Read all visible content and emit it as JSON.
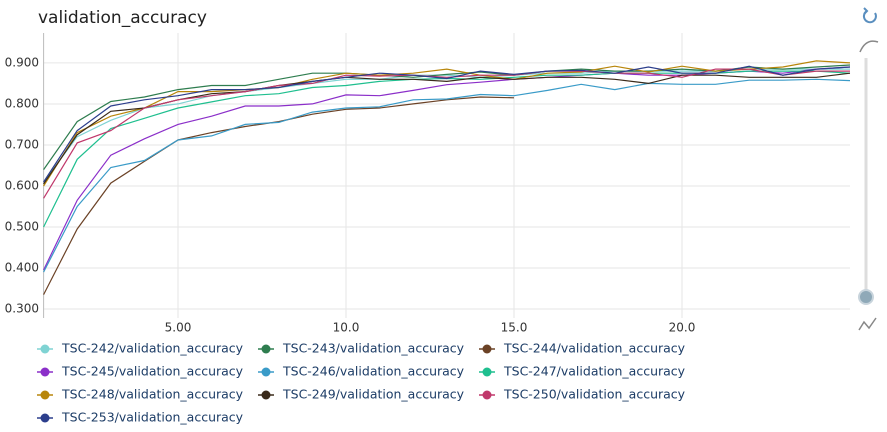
{
  "chart_data": {
    "type": "line",
    "title": "validation_accuracy",
    "x": [
      1,
      2,
      3,
      4,
      5,
      6,
      7,
      8,
      9,
      10,
      11,
      12,
      13,
      14,
      15,
      16,
      17,
      18,
      19,
      20,
      21,
      22,
      23,
      24,
      25
    ],
    "xlim": [
      1,
      25
    ],
    "ylim": [
      0.278,
      0.973
    ],
    "xticks": [
      {
        "value": 5,
        "label": "5.00"
      },
      {
        "value": 10,
        "label": "10.0"
      },
      {
        "value": 15,
        "label": "15.0"
      },
      {
        "value": 20,
        "label": "20.0"
      }
    ],
    "yticks": [
      {
        "value": 0.3,
        "label": "0.300"
      },
      {
        "value": 0.4,
        "label": "0.400"
      },
      {
        "value": 0.5,
        "label": "0.500"
      },
      {
        "value": 0.6,
        "label": "0.600"
      },
      {
        "value": 0.7,
        "label": "0.700"
      },
      {
        "value": 0.8,
        "label": "0.800"
      },
      {
        "value": 0.9,
        "label": "0.900"
      }
    ],
    "grid": true,
    "series": [
      {
        "name": "TSC-242/validation_accuracy",
        "color": "#7fd3d3",
        "values": [
          0.61,
          0.72,
          0.76,
          0.79,
          0.8,
          0.82,
          0.83,
          0.84,
          0.85,
          0.86,
          0.86,
          0.87,
          0.87,
          0.865,
          0.87,
          0.875,
          0.875,
          0.88,
          0.88,
          0.88,
          0.88,
          0.885,
          0.885,
          0.885,
          0.885
        ]
      },
      {
        "name": "TSC-243/validation_accuracy",
        "color": "#2e7d4f",
        "values": [
          0.64,
          0.757,
          0.806,
          0.817,
          0.835,
          0.845,
          0.845,
          0.86,
          0.875,
          0.875,
          0.87,
          0.865,
          0.872,
          0.878,
          0.87,
          0.88,
          0.885,
          0.88,
          0.88,
          0.885,
          0.88,
          0.89,
          0.885,
          0.89,
          0.895
        ]
      },
      {
        "name": "TSC-244/validation_accuracy",
        "color": "#6b4226",
        "values": [
          0.335,
          0.495,
          0.607,
          0.66,
          0.712,
          0.73,
          0.745,
          0.757,
          0.775,
          0.787,
          0.79,
          0.8,
          0.81,
          0.817,
          0.815,
          null,
          null,
          null,
          null,
          null,
          null,
          null,
          null,
          null,
          null
        ]
      },
      {
        "name": "TSC-245/validation_accuracy",
        "color": "#8b2fc9",
        "values": [
          0.395,
          0.565,
          0.675,
          0.715,
          0.75,
          0.77,
          0.795,
          0.795,
          0.8,
          0.822,
          0.82,
          0.833,
          0.847,
          0.853,
          0.86,
          0.865,
          0.87,
          0.875,
          0.87,
          0.87,
          0.875,
          0.88,
          0.875,
          0.885,
          0.89
        ]
      },
      {
        "name": "TSC-246/validation_accuracy",
        "color": "#3a9bc8",
        "values": [
          0.39,
          0.55,
          0.645,
          0.662,
          0.712,
          0.722,
          0.75,
          0.755,
          0.78,
          0.79,
          0.793,
          0.81,
          0.812,
          0.823,
          0.82,
          0.833,
          0.848,
          0.835,
          0.85,
          0.848,
          0.848,
          0.858,
          0.858,
          0.86,
          0.857
        ]
      },
      {
        "name": "TSC-247/validation_accuracy",
        "color": "#1fbf8f",
        "values": [
          0.5,
          0.665,
          0.74,
          0.765,
          0.79,
          0.805,
          0.82,
          0.825,
          0.84,
          0.845,
          0.855,
          0.86,
          0.862,
          0.86,
          0.865,
          0.87,
          0.87,
          0.875,
          0.875,
          0.875,
          0.875,
          0.88,
          0.88,
          0.88,
          0.875
        ]
      },
      {
        "name": "TSC-248/validation_accuracy",
        "color": "#b8860b",
        "values": [
          0.6,
          0.73,
          0.77,
          0.79,
          0.83,
          0.83,
          0.835,
          0.84,
          0.86,
          0.875,
          0.87,
          0.875,
          0.885,
          0.87,
          0.86,
          0.875,
          0.878,
          0.892,
          0.878,
          0.892,
          0.88,
          0.885,
          0.89,
          0.905,
          0.9
        ]
      },
      {
        "name": "TSC-249/validation_accuracy",
        "color": "#3a2a1a",
        "values": [
          0.605,
          0.725,
          0.782,
          0.79,
          0.81,
          0.825,
          0.83,
          0.845,
          0.855,
          0.865,
          0.86,
          0.86,
          0.855,
          0.865,
          0.86,
          0.865,
          0.865,
          0.86,
          0.85,
          0.87,
          0.87,
          0.865,
          0.865,
          0.865,
          0.875
        ]
      },
      {
        "name": "TSC-250/validation_accuracy",
        "color": "#c0386b",
        "values": [
          0.57,
          0.705,
          0.735,
          0.79,
          0.81,
          0.82,
          0.83,
          0.845,
          0.85,
          0.87,
          0.868,
          0.87,
          0.865,
          0.87,
          0.87,
          0.88,
          0.88,
          0.875,
          0.875,
          0.865,
          0.885,
          0.885,
          0.87,
          0.88,
          0.88
        ]
      },
      {
        "name": "TSC-253/validation_accuracy",
        "color": "#2c3e8c",
        "values": [
          0.61,
          0.735,
          0.795,
          0.81,
          0.82,
          0.835,
          0.835,
          0.84,
          0.855,
          0.865,
          0.875,
          0.87,
          0.862,
          0.88,
          0.872,
          0.88,
          0.882,
          0.875,
          0.89,
          0.875,
          0.875,
          0.892,
          0.87,
          0.885,
          0.89
        ]
      }
    ]
  }
}
